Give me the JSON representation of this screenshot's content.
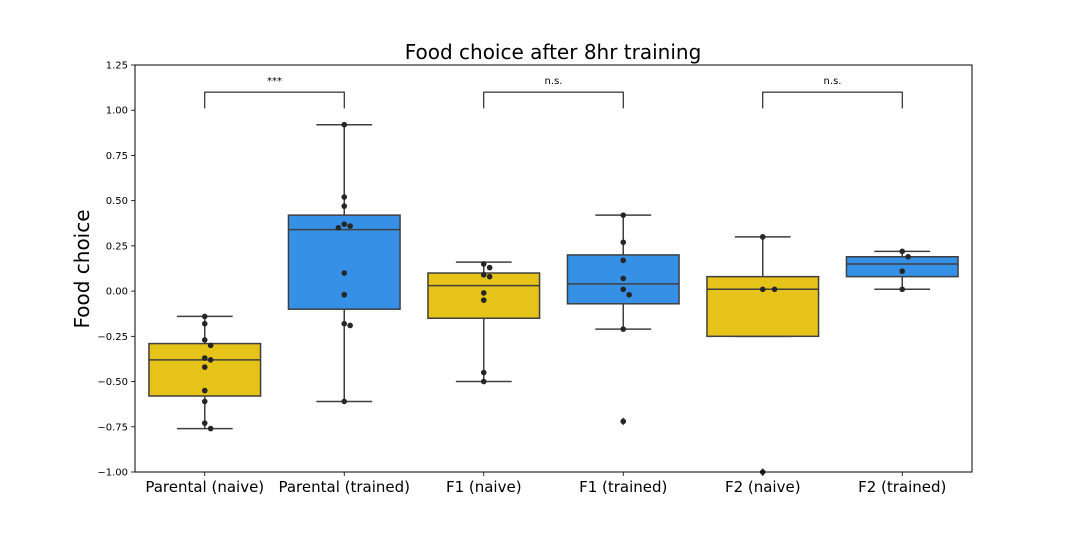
{
  "chart_data": {
    "type": "box",
    "title": "Food choice after 8hr training",
    "xlabel": "",
    "ylabel": "Food choice",
    "ylim": [
      -1.0,
      1.25
    ],
    "yticks": [
      "1.25",
      "1.00",
      "0.75",
      "0.50",
      "0.25",
      "0.00",
      "−0.25",
      "−0.50",
      "−0.75",
      "−1.00"
    ],
    "ytick_values": [
      1.25,
      1.0,
      0.75,
      0.5,
      0.25,
      0.0,
      -0.25,
      -0.5,
      -0.75,
      -1.0
    ],
    "colors": {
      "naive": "#e5c318",
      "trained": "#3590e6",
      "line": "#3f3f3f",
      "point": "#262626"
    },
    "categories": [
      "Parental (naive)",
      "Parental (trained)",
      "F1 (naive)",
      "F1 (trained)",
      "F2 (naive)",
      "F2 (trained)"
    ],
    "boxes": [
      {
        "group": "naive",
        "whisker_low": -0.76,
        "q1": -0.58,
        "median": -0.38,
        "q3": -0.29,
        "whisker_high": -0.14,
        "fliers": []
      },
      {
        "group": "trained",
        "whisker_low": -0.61,
        "q1": -0.1,
        "median": 0.34,
        "q3": 0.42,
        "whisker_high": 0.92,
        "fliers": []
      },
      {
        "group": "naive",
        "whisker_low": -0.5,
        "q1": -0.15,
        "median": 0.03,
        "q3": 0.1,
        "whisker_high": 0.16,
        "fliers": []
      },
      {
        "group": "trained",
        "whisker_low": -0.21,
        "q1": -0.07,
        "median": 0.04,
        "q3": 0.2,
        "whisker_high": 0.42,
        "fliers": [
          -0.72
        ]
      },
      {
        "group": "naive",
        "whisker_low": -0.25,
        "q1": -0.25,
        "median": 0.01,
        "q3": 0.08,
        "whisker_high": 0.3,
        "fliers": [
          -1.0
        ]
      },
      {
        "group": "trained",
        "whisker_low": 0.01,
        "q1": 0.08,
        "median": 0.15,
        "q3": 0.19,
        "whisker_high": 0.22,
        "fliers": []
      }
    ],
    "points": [
      [
        -0.14,
        -0.18,
        -0.27,
        -0.3,
        -0.37,
        -0.38,
        -0.42,
        -0.55,
        -0.61,
        -0.73,
        -0.76
      ],
      [
        0.92,
        0.52,
        0.47,
        0.37,
        0.36,
        0.35,
        0.1,
        -0.02,
        -0.18,
        -0.19,
        -0.61
      ],
      [
        0.15,
        0.13,
        0.09,
        0.08,
        -0.01,
        -0.05,
        -0.45,
        -0.5
      ],
      [
        0.42,
        0.27,
        0.17,
        0.07,
        0.01,
        -0.02,
        -0.21,
        -0.72
      ],
      [
        0.3,
        0.01,
        0.01,
        -1.0
      ],
      [
        0.22,
        0.19,
        0.11,
        0.01
      ]
    ],
    "annotations": [
      {
        "from": 0,
        "to": 1,
        "text": "***"
      },
      {
        "from": 2,
        "to": 3,
        "text": "n.s."
      },
      {
        "from": 4,
        "to": 5,
        "text": "n.s."
      }
    ],
    "grid": false,
    "legend": "none"
  }
}
